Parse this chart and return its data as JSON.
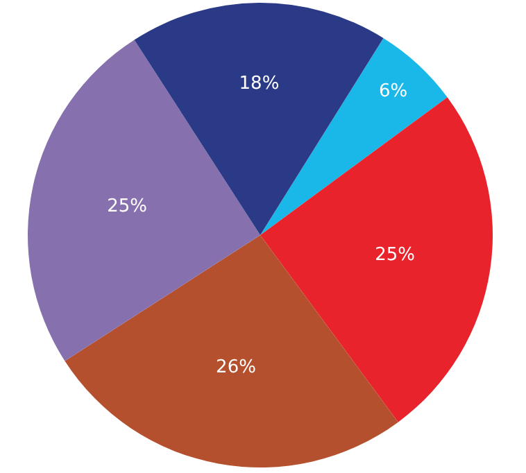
{
  "chart_data": {
    "type": "pie",
    "categories": [
      null,
      null,
      null,
      null,
      null
    ],
    "values": [
      6,
      25,
      26,
      25,
      18
    ],
    "colors": [
      "#1ab8e8",
      "#e8232b",
      "#b5502e",
      "#8670ae",
      "#2b3a87"
    ],
    "value_labels": [
      "6%",
      "25%",
      "26%",
      "25%",
      "18%"
    ],
    "legend": false
  }
}
